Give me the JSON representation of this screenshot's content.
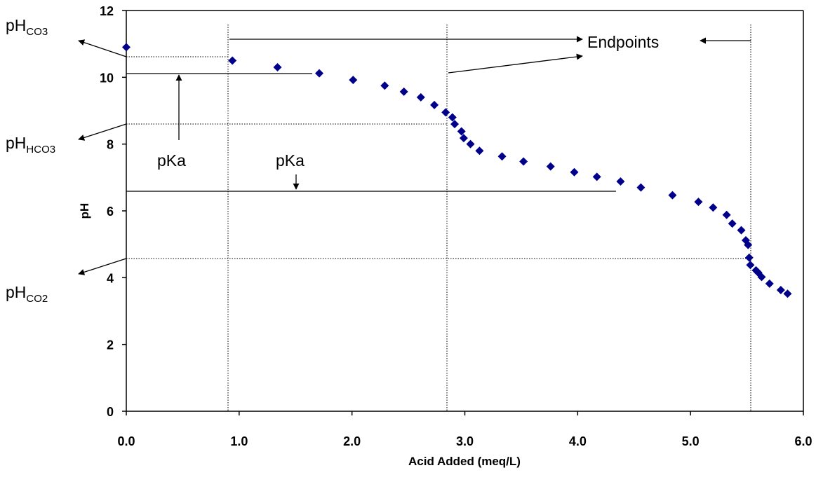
{
  "chart_data": {
    "type": "scatter",
    "title": "",
    "xlabel": "Acid Added (meq/L)",
    "ylabel": "pH",
    "xlim": [
      0,
      6
    ],
    "ylim": [
      0,
      12
    ],
    "x_ticks": [
      "0.0",
      "1.0",
      "2.0",
      "3.0",
      "4.0",
      "5.0",
      "6.0"
    ],
    "y_ticks": [
      "0",
      "2",
      "4",
      "6",
      "8",
      "10",
      "12"
    ],
    "grid": false,
    "legend": "none",
    "marker_color": "#00008b",
    "series": [
      {
        "marker": "diamond",
        "x": [
          0.0,
          0.94,
          1.34,
          1.71,
          2.01,
          2.29,
          2.46,
          2.61,
          2.73,
          2.83,
          2.89,
          2.91,
          2.97,
          2.99,
          3.05,
          3.13,
          3.33,
          3.52,
          3.76,
          3.97,
          4.17,
          4.38,
          4.56,
          4.84,
          5.07,
          5.2,
          5.32,
          5.37,
          5.45,
          5.49,
          5.51,
          5.52,
          5.53,
          5.58,
          5.6,
          5.63,
          5.7,
          5.8,
          5.86
        ],
        "y": [
          10.9,
          10.5,
          10.3,
          10.12,
          9.92,
          9.75,
          9.57,
          9.4,
          9.17,
          8.95,
          8.8,
          8.6,
          8.38,
          8.18,
          8.0,
          7.8,
          7.63,
          7.48,
          7.33,
          7.16,
          7.02,
          6.88,
          6.7,
          6.47,
          6.27,
          6.1,
          5.88,
          5.62,
          5.42,
          5.12,
          4.98,
          4.6,
          4.38,
          4.22,
          4.15,
          4.02,
          3.82,
          3.63,
          3.52
        ]
      }
    ],
    "annotations": {
      "endpoints": "Endpoints",
      "pka_left": "pKa",
      "pka_center": "pKa",
      "ph_co3_main": "pH",
      "ph_co3_sub": "CO3",
      "ph_hco3_main": "pH",
      "ph_hco3_sub": "HCO3",
      "ph_co2_main": "pH",
      "ph_co2_sub": "CO2"
    }
  }
}
